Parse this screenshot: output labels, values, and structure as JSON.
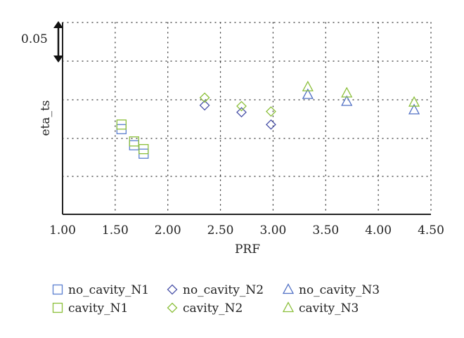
{
  "chart_data": {
    "type": "scatter",
    "xlabel": "PRF",
    "ylabel": "eta_ts",
    "xlim": [
      1.0,
      4.5
    ],
    "x_ticks": [
      "1.00",
      "1.50",
      "2.00",
      "2.50",
      "3.00",
      "3.50",
      "4.00",
      "4.50"
    ],
    "y_scale_note": "0.05",
    "y_rel_range": [
      -0.13,
      0.12
    ],
    "grid": true,
    "legend_position": "bottom",
    "series": [
      {
        "name": "no_cavity_N1",
        "marker": "square",
        "color": "#5b7fd0",
        "points": [
          [
            1.56,
            -0.019
          ],
          [
            1.68,
            -0.04
          ],
          [
            1.77,
            -0.051
          ]
        ]
      },
      {
        "name": "no_cavity_N2",
        "marker": "diamond",
        "color": "#4a52a8",
        "points": [
          [
            2.35,
            0.012
          ],
          [
            2.7,
            0.003
          ],
          [
            2.98,
            -0.013
          ]
        ]
      },
      {
        "name": "no_cavity_N3",
        "marker": "triangle",
        "color": "#4f6fc4",
        "points": [
          [
            3.33,
            0.026
          ],
          [
            3.7,
            0.017
          ],
          [
            4.34,
            0.006
          ]
        ]
      },
      {
        "name": "cavity_N1",
        "marker": "square",
        "color": "#8bbf3a",
        "points": [
          [
            1.56,
            -0.013
          ],
          [
            1.68,
            -0.035
          ],
          [
            1.77,
            -0.045
          ]
        ]
      },
      {
        "name": "cavity_N2",
        "marker": "diamond",
        "color": "#8bbf3a",
        "points": [
          [
            2.35,
            0.022
          ],
          [
            2.7,
            0.011
          ],
          [
            2.98,
            0.004
          ]
        ]
      },
      {
        "name": "cavity_N3",
        "marker": "triangle",
        "color": "#8bbf3a",
        "points": [
          [
            3.33,
            0.036
          ],
          [
            3.7,
            0.028
          ],
          [
            4.34,
            0.016
          ]
        ]
      }
    ]
  }
}
